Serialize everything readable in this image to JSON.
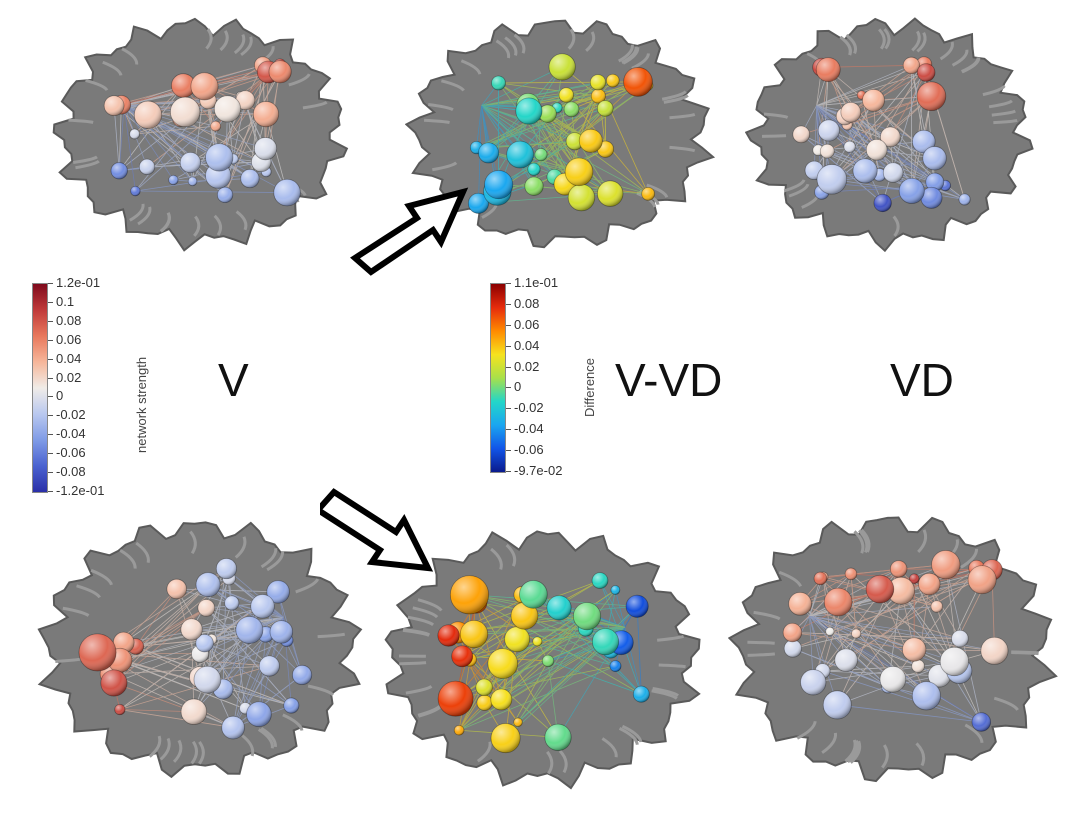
{
  "labels": {
    "left": "V",
    "middle": "V-VD",
    "right": "VD"
  },
  "colorbar_strength": {
    "title": "network strength",
    "ticks": [
      "1.2e-01",
      "0.1",
      "0.08",
      "0.06",
      "0.04",
      "0.02",
      "0",
      "-0.02",
      "-0.04",
      "-0.06",
      "-0.08",
      "-1.2e-01"
    ],
    "gradient": [
      "#7f0a1c",
      "#c03a3a",
      "#e8785c",
      "#f6b69a",
      "#f0ece8",
      "#b9c8ef",
      "#7f9be6",
      "#4a62d0",
      "#2a2fa8"
    ]
  },
  "colorbar_difference": {
    "title": "Difference",
    "ticks": [
      "1.1e-01",
      "0.08",
      "0.06",
      "0.04",
      "0.02",
      "0",
      "-0.02",
      "-0.04",
      "-0.06",
      "-9.7e-02"
    ],
    "gradient": [
      "#8b0000",
      "#e62b0c",
      "#ff8a00",
      "#f6e21e",
      "#a8e04a",
      "#23d6c8",
      "#1aa6f0",
      "#1255e8",
      "#0a1a8c"
    ]
  },
  "panels": [
    {
      "name": "brain-top-v",
      "palette": "strength"
    },
    {
      "name": "brain-top-diff",
      "palette": "difference"
    },
    {
      "name": "brain-top-vd",
      "palette": "strength"
    },
    {
      "name": "brain-bottom-v",
      "palette": "strength"
    },
    {
      "name": "brain-bottom-diff",
      "palette": "difference"
    },
    {
      "name": "brain-bottom-vd",
      "palette": "strength"
    }
  ]
}
